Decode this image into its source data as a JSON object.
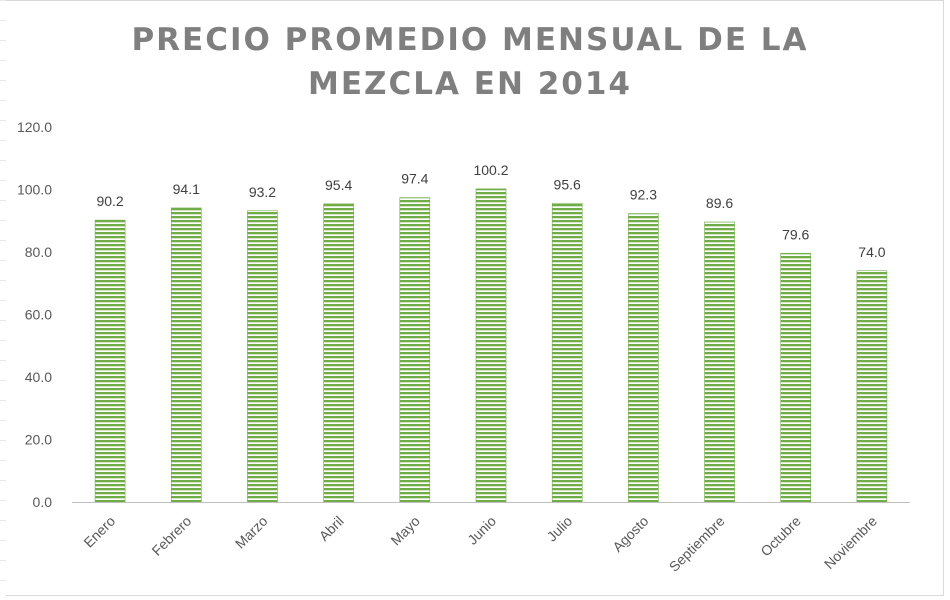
{
  "chart_data": {
    "type": "bar",
    "title_lines": [
      "PRECIO PROMEDIO MENSUAL DE LA",
      "MEZCLA EN 2014"
    ],
    "categories": [
      "Enero",
      "Febrero",
      "Marzo",
      "Abril",
      "Mayo",
      "Junio",
      "Julio",
      "Agosto",
      "Septiembre",
      "Octubre",
      "Noviembre"
    ],
    "values": [
      90.2,
      94.1,
      93.2,
      95.4,
      97.4,
      100.2,
      95.6,
      92.3,
      89.6,
      79.6,
      74.0
    ],
    "value_labels": [
      "90.2",
      "94.1",
      "93.2",
      "95.4",
      "97.4",
      "100.2",
      "95.6",
      "92.3",
      "89.6",
      "79.6",
      "74.0"
    ],
    "y_ticks": [
      "0.0",
      "20.0",
      "40.0",
      "60.0",
      "80.0",
      "100.0",
      "120.0"
    ],
    "ylim": [
      0,
      120
    ],
    "xlabel": "",
    "ylabel": "",
    "grid": false,
    "bar_color": "#70ad47",
    "bar_pattern": "horizontal-stripes"
  }
}
